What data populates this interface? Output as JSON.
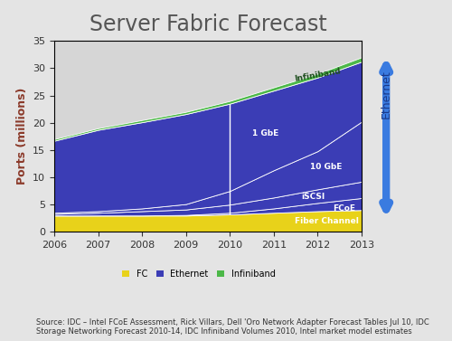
{
  "chart_data": {
    "type": "stacked_area",
    "title": "Server Fabric Forecast",
    "y_label": "Ports (millions)",
    "x": [
      2006,
      2007,
      2008,
      2009,
      2010,
      2011,
      2012,
      2013
    ],
    "xlim": [
      2006,
      2013
    ],
    "xticks": [
      2006,
      2007,
      2008,
      2009,
      2010,
      2011,
      2012,
      2013
    ],
    "ylim": [
      0,
      35
    ],
    "yticks": [
      0,
      5,
      10,
      15,
      20,
      25,
      30,
      35
    ],
    "stacked": true,
    "series": [
      {
        "name": "Fiber Channel",
        "color": "#e8d21a",
        "values": [
          3,
          3,
          3,
          3,
          3.2,
          3.5,
          3.8,
          4
        ]
      },
      {
        "name": "FCoE",
        "color": "#3b3db5",
        "values": [
          0,
          0,
          0,
          0.1,
          0.3,
          0.8,
          1.5,
          2.2
        ]
      },
      {
        "name": "iSCSI",
        "color": "#3b3db5",
        "values": [
          0.3,
          0.5,
          0.8,
          1,
          1.5,
          2,
          2.5,
          3
        ]
      },
      {
        "name": "10 GbE",
        "color": "#3b3db5",
        "values": [
          0.2,
          0.3,
          0.5,
          1,
          2.5,
          5,
          7,
          11
        ]
      },
      {
        "name": "1 GbE",
        "color": "#3b3db5",
        "values": [
          13.2,
          14.9,
          15.8,
          16.5,
          16,
          14.6,
          13.5,
          11
        ]
      },
      {
        "name": "Infiniband",
        "color": "#4cb848",
        "values": [
          0.3,
          0.3,
          0.4,
          0.4,
          0.5,
          0.6,
          0.7,
          0.8
        ]
      }
    ],
    "forecast_start": 2010,
    "bracket_label": "Ethernet",
    "legend": "bottom",
    "legend_items": [
      {
        "name": "FC",
        "color": "#e8d21a"
      },
      {
        "name": "Ethernet",
        "color": "#3b3db5"
      },
      {
        "name": "Infiniband",
        "color": "#4cb848"
      }
    ],
    "source": "Source: IDC – Intel FCoE Assessment, Rick Villars, Dell 'Oro Network Adapter Forecast Tables Jul 10, IDC Storage Networking Forecast 2010-14, IDC Infiniband Volumes 2010, Intel market model estimates"
  }
}
